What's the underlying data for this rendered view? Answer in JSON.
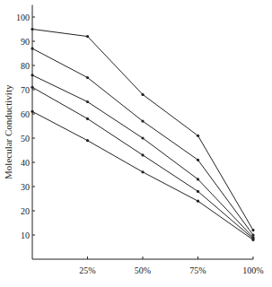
{
  "chart_data": {
    "type": "line",
    "y_label": "Molecular Conductivity",
    "x": [
      0,
      25,
      50,
      75,
      100
    ],
    "series": [
      {
        "color": "#222222",
        "values": [
          95,
          92,
          68,
          51,
          12
        ]
      },
      {
        "color": "#222222",
        "values": [
          87,
          75,
          57,
          41,
          10
        ]
      },
      {
        "color": "#222222",
        "values": [
          76,
          65,
          50,
          33,
          9
        ]
      },
      {
        "color": "#222222",
        "values": [
          71,
          58,
          43,
          28,
          8.5
        ]
      },
      {
        "color": "#222222",
        "values": [
          61,
          49,
          36,
          24,
          8
        ]
      }
    ],
    "xlim": [
      0,
      100
    ],
    "xticks": [
      {
        "value": 25,
        "label": "25%"
      },
      {
        "value": 50,
        "label": "50%"
      },
      {
        "value": 75,
        "label": "75%"
      },
      {
        "value": 100,
        "label": "100%"
      }
    ],
    "ylim": [
      0,
      105
    ],
    "yticks": [
      10,
      20,
      30,
      40,
      50,
      60,
      70,
      80,
      90,
      100
    ],
    "grid": false,
    "marker": "circle"
  }
}
